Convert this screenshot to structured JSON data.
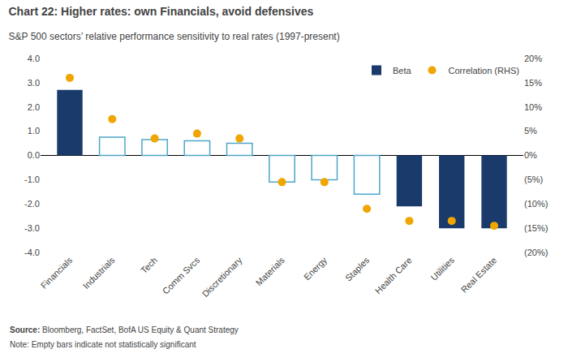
{
  "chart_data": {
    "type": "bar",
    "title": "Chart 22: Higher rates: own Financials, avoid defensives",
    "subtitle": "S&P 500 sectors’ relative performance sensitivity to real rates (1997-present)",
    "categories": [
      "Financials",
      "Industrials",
      "Tech",
      "Comm Svcs",
      "Discretionary",
      "Materials",
      "Energy",
      "Staples",
      "Health Care",
      "Utilities",
      "Real Estate"
    ],
    "series": [
      {
        "name": "Beta",
        "type": "bar",
        "color": "#1a3a6b",
        "values": [
          2.7,
          null,
          null,
          null,
          null,
          null,
          null,
          null,
          -2.1,
          -3.0,
          -3.0
        ]
      },
      {
        "type": "bar",
        "color": "#4da6c8",
        "marker": "hollow",
        "values": [
          null,
          0.75,
          0.65,
          0.6,
          0.5,
          -1.1,
          -1.0,
          -1.6,
          null,
          null,
          null
        ]
      },
      {
        "name": "Correlation (RHS)",
        "type": "scatter",
        "axis": "y2",
        "color": "#f0a500",
        "marker": "circle",
        "values": [
          0.16,
          0.075,
          0.035,
          0.045,
          0.035,
          -0.055,
          -0.055,
          -0.11,
          -0.135,
          -0.135,
          -0.145
        ]
      }
    ],
    "ylim": [
      -4.0,
      4.0
    ],
    "yticks": [
      {
        "value": -4,
        "label": "-4.0"
      },
      {
        "value": -3,
        "label": "-3.0"
      },
      {
        "value": -2,
        "label": "-2.0"
      },
      {
        "value": -1,
        "label": "-1.0"
      },
      {
        "value": 0,
        "label": "0.0"
      },
      {
        "value": 1,
        "label": "1.0"
      },
      {
        "value": 2,
        "label": "2.0"
      },
      {
        "value": 3,
        "label": "3.0"
      },
      {
        "value": 4,
        "label": "4.0"
      }
    ],
    "y2lim": [
      -0.2,
      0.2
    ],
    "y2ticks": [
      {
        "value": -0.2,
        "label": "(20%)"
      },
      {
        "value": -0.15,
        "label": "(15%)"
      },
      {
        "value": -0.1,
        "label": "(10%)"
      },
      {
        "value": -0.05,
        "label": "(5%)"
      },
      {
        "value": 0,
        "label": "0%"
      },
      {
        "value": 0.05,
        "label": "5%"
      },
      {
        "value": 0.1,
        "label": "10%"
      },
      {
        "value": 0.15,
        "label": "15%"
      },
      {
        "value": 0.2,
        "label": "20%"
      }
    ],
    "source_label": "Source:",
    "source": "Bloomberg, FactSet, BofA US Equity & Quant Strategy",
    "note": "Note: Empty bars indicate not statistically significant",
    "legend": "upper right",
    "grid": false
  }
}
